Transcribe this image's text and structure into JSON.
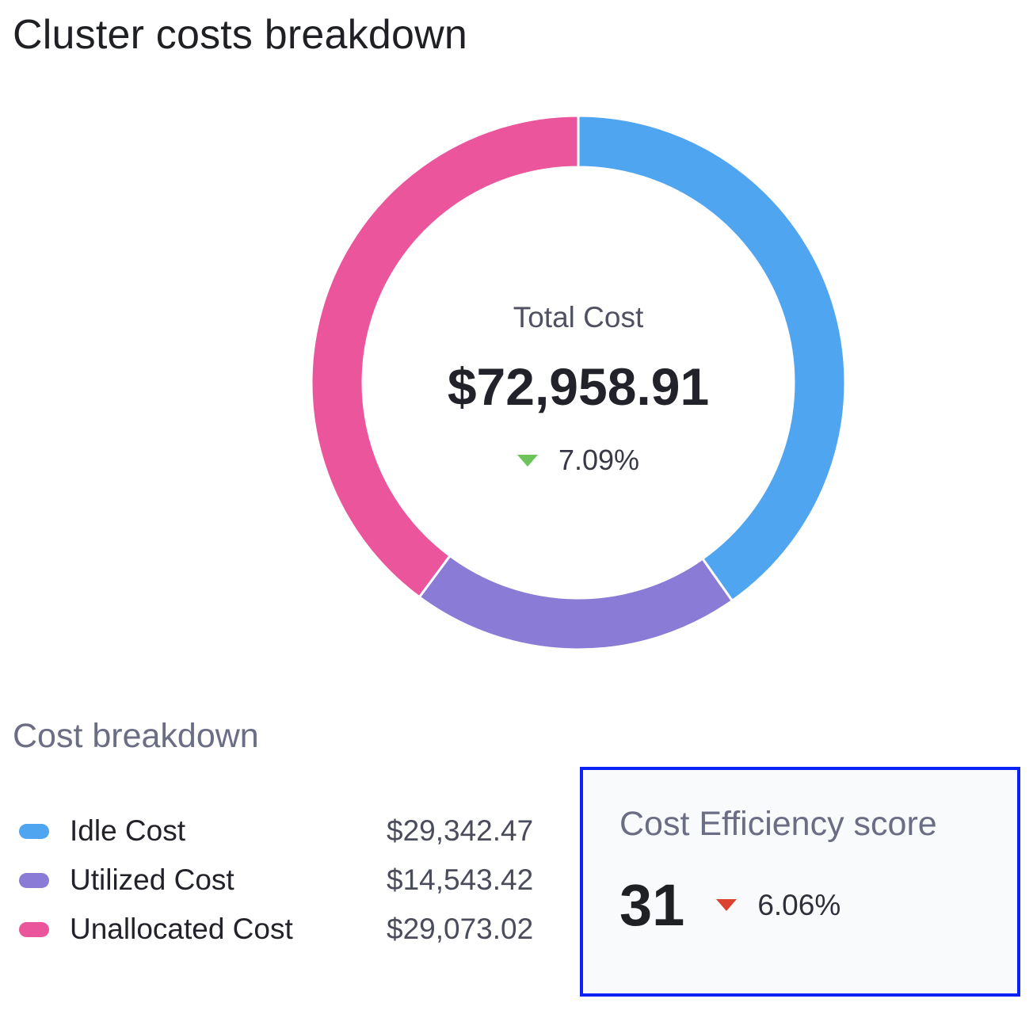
{
  "title": "Cluster costs breakdown",
  "chart_data": {
    "type": "pie",
    "variant": "donut",
    "categories": [
      "Idle Cost",
      "Utilized Cost",
      "Unallocated Cost"
    ],
    "values": [
      29342.47,
      14543.42,
      29073.02
    ],
    "colors": [
      "#4fa5f0",
      "#8a7bd6",
      "#ea559b"
    ],
    "center": {
      "label": "Total Cost",
      "value": "$72,958.91",
      "change": "7.09%",
      "change_direction": "down",
      "change_color": "#6cc35a"
    }
  },
  "breakdown": {
    "title": "Cost breakdown",
    "items": [
      {
        "label": "Idle Cost",
        "value": "$29,342.47",
        "color": "#4fa5f0"
      },
      {
        "label": "Utilized Cost",
        "value": "$14,543.42",
        "color": "#8a7bd6"
      },
      {
        "label": "Unallocated Cost",
        "value": "$29,073.02",
        "color": "#ea559b"
      }
    ]
  },
  "efficiency": {
    "title": "Cost Efficiency score",
    "score": "31",
    "change": "6.06%",
    "change_direction": "down",
    "change_color": "#d9432f",
    "highlight_color": "#0a22f5"
  }
}
